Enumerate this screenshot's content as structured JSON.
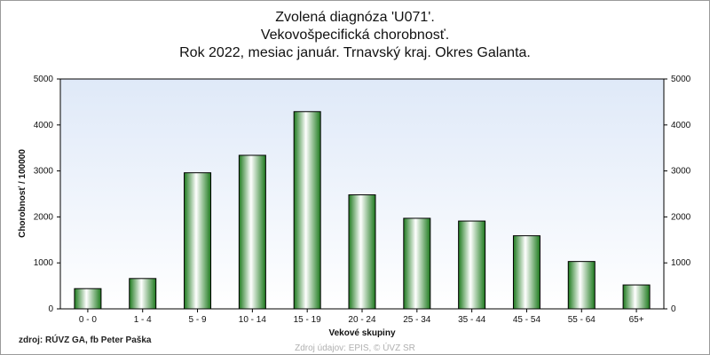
{
  "chart_data": {
    "type": "bar",
    "title": "Zvolená diagnóza 'U071'.",
    "subtitle": "Vekovošpecifická chorobnosť.",
    "subtitle2": "Rok 2022, mesiac január. Trnavský kraj. Okres Galanta.",
    "xlabel": "Vekové skupiny",
    "ylabel": "Chorobnosť / 100000",
    "ylim": [
      0,
      5000
    ],
    "yticks": [
      0,
      1000,
      2000,
      3000,
      4000,
      5000
    ],
    "categories": [
      "0 - 0",
      "1 - 4",
      "5 - 9",
      "10 - 14",
      "15 - 19",
      "20 - 24",
      "25 - 34",
      "35 - 44",
      "45 - 54",
      "55 - 64",
      "65+"
    ],
    "values": [
      440,
      660,
      2960,
      3340,
      4290,
      2480,
      1970,
      1910,
      1590,
      1030,
      520
    ],
    "bar_color": "#2e9e2e",
    "grid": false
  },
  "footer": {
    "source": "zdroj: RÚVZ GA, fb Peter Paška",
    "data_source": "Zdroj údajov: EPIS, © ÚVZ SR"
  }
}
